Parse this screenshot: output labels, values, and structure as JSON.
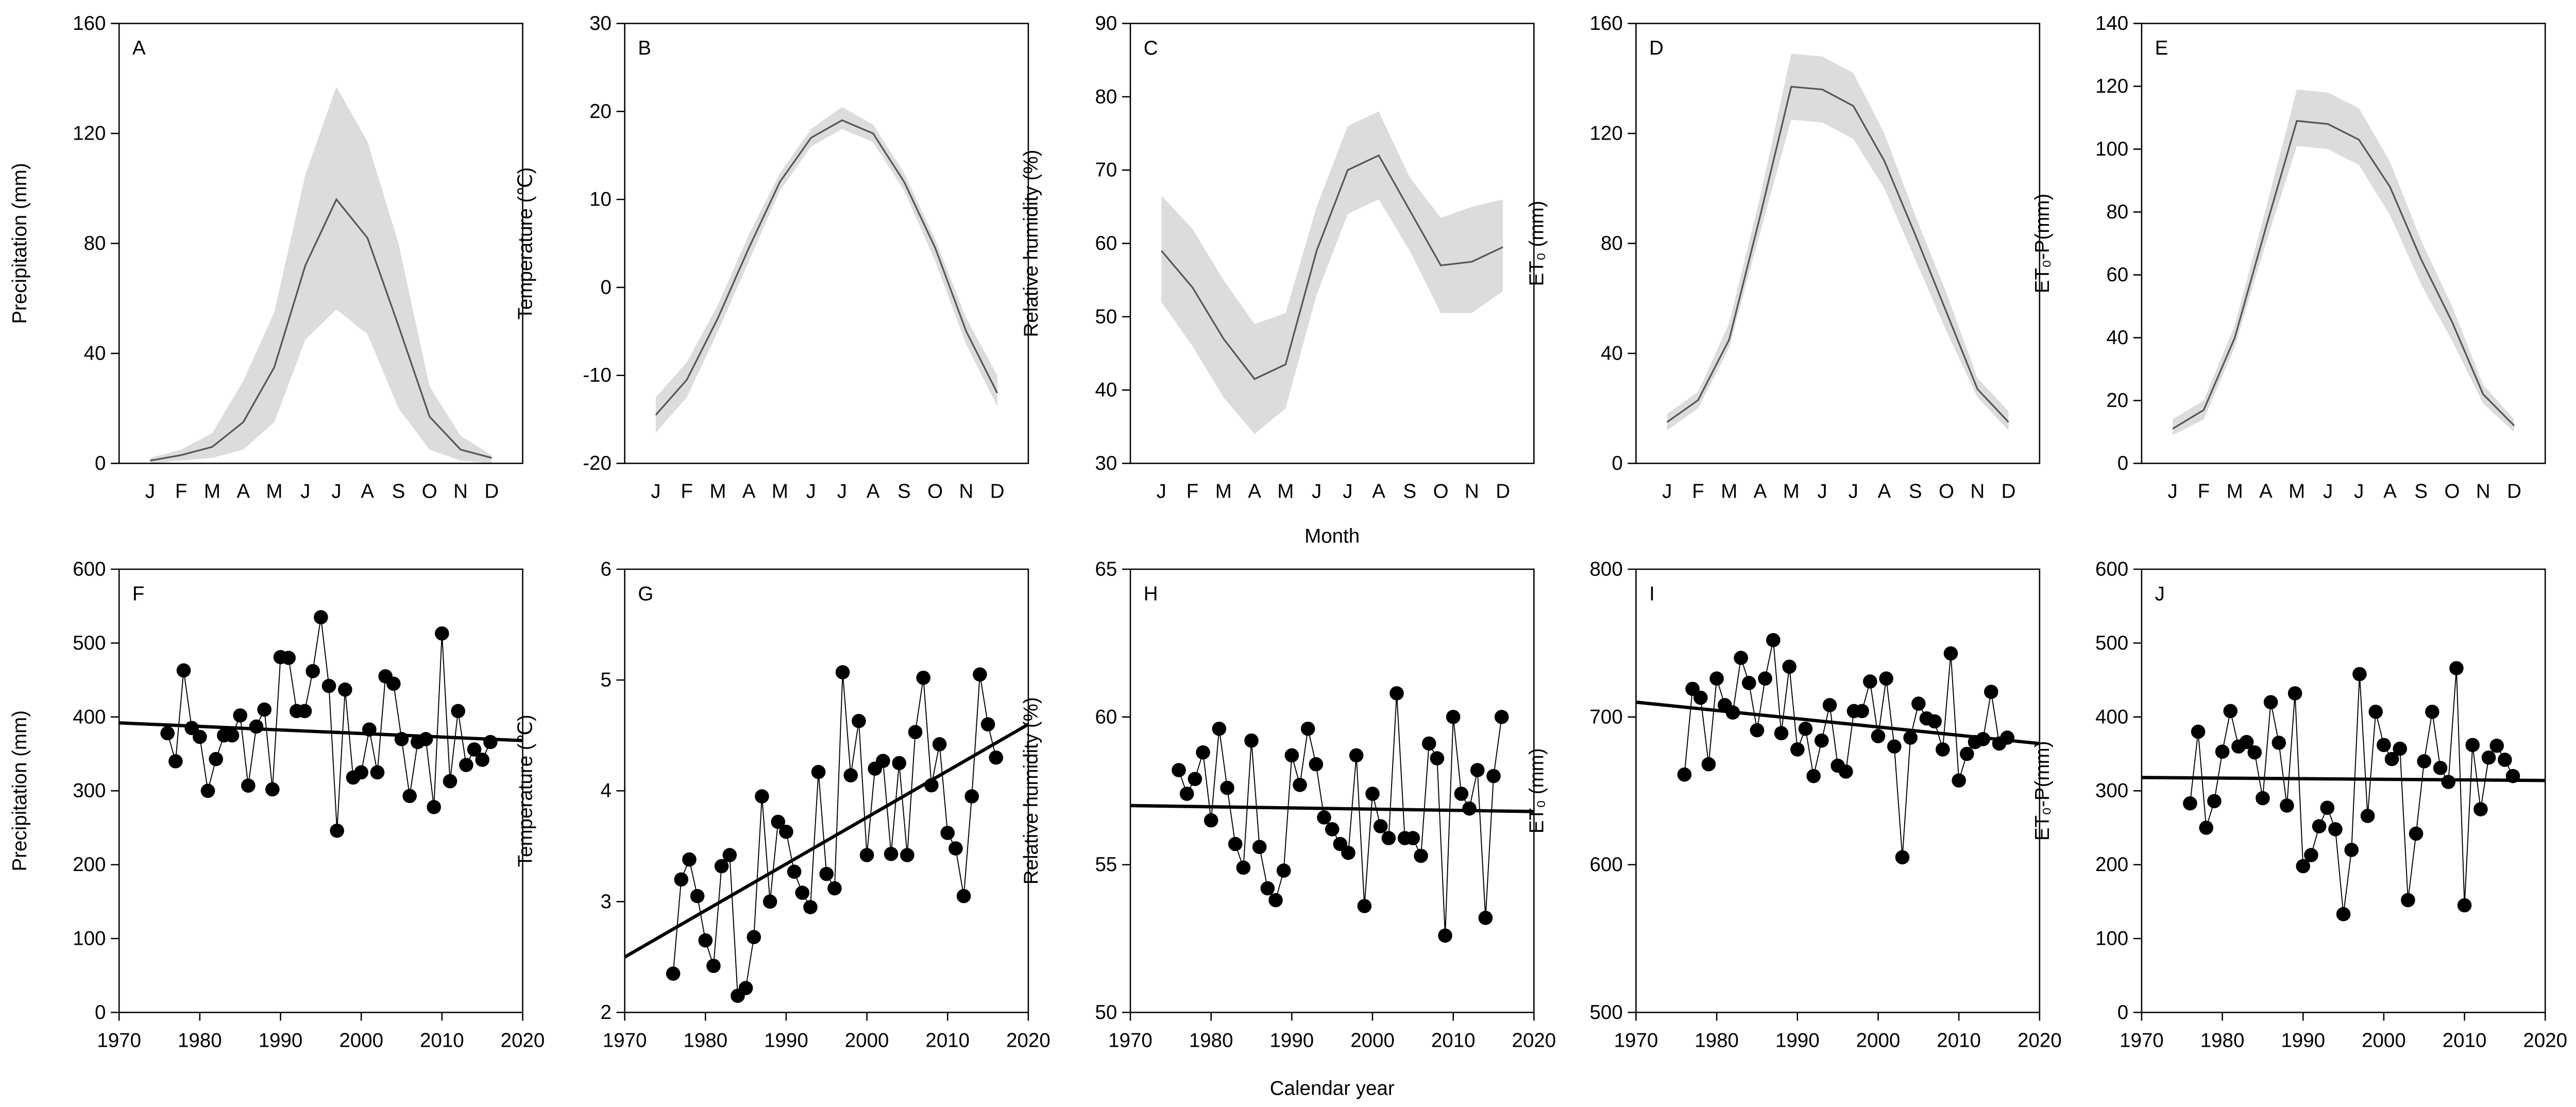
{
  "chart_data": [
    {
      "type": "line",
      "panel_label": "A",
      "ylabel": "Precipitation (mm)",
      "categories": [
        "J",
        "F",
        "M",
        "A",
        "M",
        "J",
        "J",
        "A",
        "S",
        "O",
        "N",
        "D"
      ],
      "values": [
        1,
        3,
        6,
        15,
        35,
        72,
        96,
        82,
        50,
        17,
        5,
        2
      ],
      "band_lower": [
        0,
        1,
        2,
        5,
        15,
        45,
        56,
        47,
        20,
        5,
        1,
        0
      ],
      "band_upper": [
        2,
        5,
        11,
        30,
        55,
        105,
        137,
        117,
        80,
        28,
        10,
        3
      ],
      "ylim": [
        0,
        160
      ],
      "yticks": [
        0,
        40,
        80,
        120,
        160
      ],
      "color": "#555555",
      "band_color": "#dcdcdc"
    },
    {
      "type": "line",
      "panel_label": "B",
      "ylabel": "Temperature (℃)",
      "categories": [
        "J",
        "F",
        "M",
        "A",
        "M",
        "J",
        "J",
        "A",
        "S",
        "O",
        "N",
        "D"
      ],
      "values": [
        -14.5,
        -10.5,
        -3.5,
        4.5,
        12,
        17,
        19,
        17.5,
        12,
        4.5,
        -5,
        -12
      ],
      "band_lower": [
        -16.5,
        -12.5,
        -5,
        3,
        11,
        16,
        18,
        16.5,
        11,
        3,
        -6.5,
        -13.5
      ],
      "band_upper": [
        -12.5,
        -8.5,
        -2,
        6,
        13,
        18,
        20.5,
        18.5,
        13,
        5.5,
        -3.5,
        -10
      ],
      "ylim": [
        -20,
        30
      ],
      "yticks": [
        -20,
        -10,
        0,
        10,
        20,
        30
      ],
      "color": "#555555",
      "band_color": "#dcdcdc"
    },
    {
      "type": "line",
      "panel_label": "C",
      "ylabel": "Relative humidity (%)",
      "xlabel": "Month",
      "categories": [
        "J",
        "F",
        "M",
        "A",
        "M",
        "J",
        "J",
        "A",
        "S",
        "O",
        "N",
        "D"
      ],
      "values": [
        59,
        54,
        47,
        41.5,
        43.5,
        59,
        70,
        72,
        64.5,
        57,
        57.5,
        59.5
      ],
      "band_lower": [
        52,
        46,
        39,
        34,
        37.5,
        53,
        64,
        66,
        59,
        50.5,
        50.5,
        53.5
      ],
      "band_upper": [
        66.5,
        62,
        55,
        49,
        50.5,
        65,
        76,
        78,
        69,
        63.5,
        65,
        66
      ],
      "ylim": [
        30,
        90
      ],
      "yticks": [
        30,
        40,
        50,
        60,
        70,
        80,
        90
      ],
      "color": "#555555",
      "band_color": "#dcdcdc"
    },
    {
      "type": "line",
      "panel_label": "D",
      "ylabel": "ET₀ (mm)",
      "categories": [
        "J",
        "F",
        "M",
        "A",
        "M",
        "J",
        "J",
        "A",
        "S",
        "O",
        "N",
        "D"
      ],
      "values": [
        15,
        23,
        45,
        90,
        137,
        136,
        130,
        110,
        83,
        55,
        27,
        15
      ],
      "band_lower": [
        12,
        20,
        42,
        84,
        125,
        124,
        118,
        100,
        74,
        48,
        24,
        12
      ],
      "band_upper": [
        18,
        26,
        51,
        97,
        149,
        148,
        142,
        120,
        90,
        62,
        31,
        19
      ],
      "ylim": [
        0,
        160
      ],
      "yticks": [
        0,
        40,
        80,
        120,
        160
      ],
      "color": "#555555",
      "band_color": "#dcdcdc"
    },
    {
      "type": "line",
      "panel_label": "E",
      "ylabel": "ET₀-P(mm)",
      "categories": [
        "J",
        "F",
        "M",
        "A",
        "M",
        "J",
        "J",
        "A",
        "S",
        "O",
        "N",
        "D"
      ],
      "values": [
        11,
        17,
        40,
        75,
        109,
        108,
        103,
        88,
        65,
        45,
        22,
        12
      ],
      "band_lower": [
        9,
        14,
        37,
        70,
        101,
        100,
        95,
        79,
        57,
        39,
        19,
        10
      ],
      "band_upper": [
        14,
        20,
        44,
        81,
        119,
        118,
        113,
        96,
        71,
        50,
        25,
        14
      ],
      "ylim": [
        0,
        140
      ],
      "yticks": [
        0,
        20,
        40,
        60,
        80,
        100,
        120,
        140
      ],
      "color": "#555555",
      "band_color": "#dcdcdc"
    },
    {
      "type": "scatter",
      "panel_label": "F",
      "ylabel": "Precipitation (mm)",
      "x": [
        1976,
        1977,
        1978,
        1979,
        1980,
        1981,
        1982,
        1983,
        1984,
        1985,
        1986,
        1987,
        1988,
        1989,
        1990,
        1991,
        1992,
        1993,
        1994,
        1995,
        1996,
        1997,
        1998,
        1999,
        2000,
        2001,
        2002,
        2003,
        2004,
        2005,
        2006,
        2007,
        2008,
        2009,
        2010,
        2011,
        2012,
        2013,
        2014,
        2015,
        2016
      ],
      "values": [
        378,
        340,
        463,
        385,
        373,
        300,
        343,
        375,
        375,
        402,
        307,
        387,
        410,
        302,
        481,
        480,
        408,
        408,
        462,
        535,
        442,
        246,
        437,
        318,
        325,
        383,
        325,
        455,
        445,
        370,
        293,
        366,
        370,
        278,
        513,
        313,
        408,
        335,
        356,
        342,
        366
      ],
      "trend": {
        "x": [
          1970,
          2020
        ],
        "y": [
          392,
          368
        ]
      },
      "xlim": [
        1970,
        2020
      ],
      "xticks": [
        1970,
        1980,
        1990,
        2000,
        2010,
        2020
      ],
      "ylim": [
        0,
        600
      ],
      "yticks": [
        0,
        100,
        200,
        300,
        400,
        500,
        600
      ],
      "color": "#000000"
    },
    {
      "type": "scatter",
      "panel_label": "G",
      "ylabel": "Temperature (℃)",
      "x": [
        1976,
        1977,
        1978,
        1979,
        1980,
        1981,
        1982,
        1983,
        1984,
        1985,
        1986,
        1987,
        1988,
        1989,
        1990,
        1991,
        1992,
        1993,
        1994,
        1995,
        1996,
        1997,
        1998,
        1999,
        2000,
        2001,
        2002,
        2003,
        2004,
        2005,
        2006,
        2007,
        2008,
        2009,
        2010,
        2011,
        2012,
        2013,
        2014,
        2015,
        2016
      ],
      "values": [
        2.35,
        3.2,
        3.38,
        3.05,
        2.65,
        2.42,
        3.32,
        3.42,
        2.15,
        2.22,
        2.68,
        3.95,
        3.0,
        3.72,
        3.63,
        3.27,
        3.08,
        2.95,
        4.17,
        3.25,
        3.12,
        5.07,
        4.14,
        4.63,
        3.42,
        4.2,
        4.27,
        3.43,
        4.25,
        3.42,
        4.53,
        5.02,
        4.05,
        4.42,
        3.62,
        3.48,
        3.05,
        3.95,
        5.05,
        4.6,
        4.3
      ],
      "trend": {
        "x": [
          1970,
          2020
        ],
        "y": [
          2.5,
          4.6
        ]
      },
      "xlim": [
        1970,
        2020
      ],
      "xticks": [
        1970,
        1980,
        1990,
        2000,
        2010,
        2020
      ],
      "ylim": [
        2,
        6
      ],
      "yticks": [
        2,
        3,
        4,
        5,
        6
      ],
      "color": "#000000"
    },
    {
      "type": "scatter",
      "panel_label": "H",
      "ylabel": "Relative humidity (%)",
      "xlabel": "Calendar year",
      "x": [
        1976,
        1977,
        1978,
        1979,
        1980,
        1981,
        1982,
        1983,
        1984,
        1985,
        1986,
        1987,
        1988,
        1989,
        1990,
        1991,
        1992,
        1993,
        1994,
        1995,
        1996,
        1997,
        1998,
        1999,
        2000,
        2001,
        2002,
        2003,
        2004,
        2005,
        2006,
        2007,
        2008,
        2009,
        2010,
        2011,
        2012,
        2013,
        2014,
        2015,
        2016
      ],
      "values": [
        58.2,
        57.4,
        57.9,
        58.8,
        56.5,
        59.6,
        57.6,
        55.7,
        54.9,
        59.2,
        55.6,
        54.2,
        53.8,
        54.8,
        58.7,
        57.7,
        59.6,
        58.4,
        56.6,
        56.2,
        55.7,
        55.4,
        58.7,
        53.6,
        57.4,
        56.3,
        55.9,
        60.8,
        55.9,
        55.9,
        55.3,
        59.1,
        58.6,
        52.6,
        60.0,
        57.4,
        56.9,
        58.2,
        53.2,
        58.0,
        60.0
      ],
      "trend": {
        "x": [
          1970,
          2020
        ],
        "y": [
          57.0,
          56.8
        ]
      },
      "xlim": [
        1970,
        2020
      ],
      "xticks": [
        1970,
        1980,
        1990,
        2000,
        2010,
        2020
      ],
      "ylim": [
        50,
        65
      ],
      "yticks": [
        50,
        55,
        60,
        65
      ],
      "color": "#000000"
    },
    {
      "type": "scatter",
      "panel_label": "I",
      "ylabel": "ET₀ (mm)",
      "x": [
        1976,
        1977,
        1978,
        1979,
        1980,
        1981,
        1982,
        1983,
        1984,
        1985,
        1986,
        1987,
        1988,
        1989,
        1990,
        1991,
        1992,
        1993,
        1994,
        1995,
        1996,
        1997,
        1998,
        1999,
        2000,
        2001,
        2002,
        2003,
        2004,
        2005,
        2006,
        2007,
        2008,
        2009,
        2010,
        2011,
        2012,
        2013,
        2014,
        2015,
        2016
      ],
      "values": [
        661,
        719,
        713,
        668,
        726,
        708,
        703,
        740,
        723,
        691,
        726,
        752,
        689,
        734,
        678,
        692,
        660,
        684,
        708,
        667,
        663,
        704,
        704,
        724,
        687,
        726,
        680,
        605,
        686,
        709,
        699,
        697,
        678,
        743,
        657,
        675,
        683,
        685,
        717,
        682,
        686
      ],
      "trend": {
        "x": [
          1970,
          2020
        ],
        "y": [
          710,
          682
        ]
      },
      "xlim": [
        1970,
        2020
      ],
      "xticks": [
        1970,
        1980,
        1990,
        2000,
        2010,
        2020
      ],
      "ylim": [
        500,
        800
      ],
      "yticks": [
        500,
        600,
        700,
        800
      ],
      "color": "#000000"
    },
    {
      "type": "scatter",
      "panel_label": "J",
      "ylabel": "ET₀-P(mm)",
      "x": [
        1976,
        1977,
        1978,
        1979,
        1980,
        1981,
        1982,
        1983,
        1984,
        1985,
        1986,
        1987,
        1988,
        1989,
        1990,
        1991,
        1992,
        1993,
        1994,
        1995,
        1996,
        1997,
        1998,
        1999,
        2000,
        2001,
        2002,
        2003,
        2004,
        2005,
        2006,
        2007,
        2008,
        2009,
        2010,
        2011,
        2012,
        2013,
        2014,
        2015,
        2016
      ],
      "values": [
        283,
        380,
        250,
        286,
        353,
        408,
        360,
        366,
        352,
        290,
        420,
        365,
        280,
        432,
        198,
        213,
        252,
        277,
        248,
        133,
        220,
        458,
        266,
        407,
        362,
        343,
        357,
        152,
        242,
        340,
        407,
        331,
        312,
        466,
        145,
        362,
        275,
        345,
        361,
        342,
        320
      ],
      "trend": {
        "x": [
          1970,
          2020
        ],
        "y": [
          318,
          314
        ]
      },
      "xlim": [
        1970,
        2020
      ],
      "xticks": [
        1970,
        1980,
        1990,
        2000,
        2010,
        2020
      ],
      "ylim": [
        0,
        600
      ],
      "yticks": [
        0,
        100,
        200,
        300,
        400,
        500,
        600
      ],
      "color": "#000000"
    }
  ]
}
